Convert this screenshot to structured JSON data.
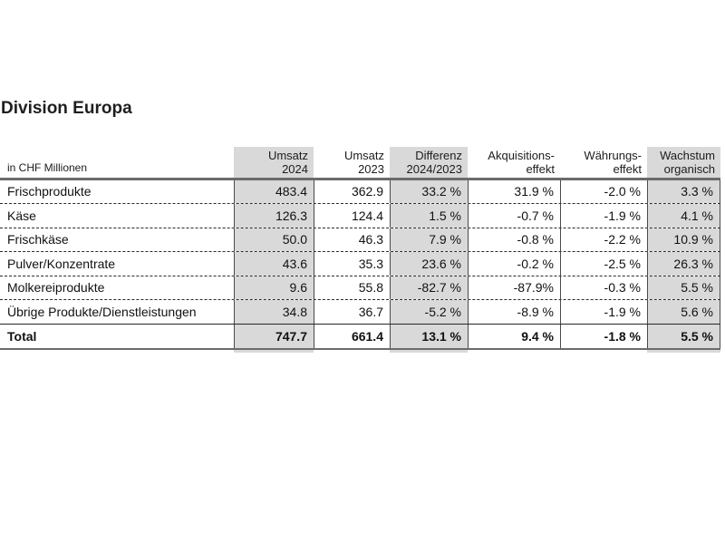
{
  "page": {
    "title": "Division Europa",
    "unit_label": "in CHF Millionen"
  },
  "colors": {
    "shaded_column": "#d9d9d9",
    "heavy_border": "#6b6b6b",
    "row_separator": "#2b2b2b",
    "column_line": "#4a4a4a"
  },
  "table": {
    "columns": [
      {
        "line1": "Umsatz",
        "line2": "2024",
        "shaded": true
      },
      {
        "line1": "Umsatz",
        "line2": "2023",
        "shaded": false
      },
      {
        "line1": "Differenz",
        "line2": "2024/2023",
        "shaded": true
      },
      {
        "line1": "Akquisitions-",
        "line2": "effekt",
        "shaded": false
      },
      {
        "line1": "Währungs-",
        "line2": "effekt",
        "shaded": false
      },
      {
        "line1": "Wachstum",
        "line2": "organisch",
        "shaded": true
      }
    ],
    "rows": [
      {
        "label": "Frischprodukte",
        "values": [
          "483.4",
          "362.9",
          "33.2 %",
          "31.9 %",
          "-2.0 %",
          "3.3 %"
        ]
      },
      {
        "label": "Käse",
        "values": [
          "126.3",
          "124.4",
          "1.5 %",
          "-0.7 %",
          "-1.9 %",
          "4.1 %"
        ]
      },
      {
        "label": "Frischkäse",
        "values": [
          "50.0",
          "46.3",
          "7.9 %",
          "-0.8 %",
          "-2.2 %",
          "10.9 %"
        ]
      },
      {
        "label": "Pulver/Konzentrate",
        "values": [
          "43.6",
          "35.3",
          "23.6 %",
          "-0.2 %",
          "-2.5 %",
          "26.3 %"
        ]
      },
      {
        "label": "Molkereiprodukte",
        "values": [
          "9.6",
          "55.8",
          "-82.7 %",
          "-87.9%",
          "-0.3 %",
          "5.5 %"
        ]
      },
      {
        "label": "Übrige Produkte/Dienstleistungen",
        "values": [
          "34.8",
          "36.7",
          "-5.2 %",
          "-8.9 %",
          "-1.9 %",
          "5.6 %"
        ]
      },
      {
        "label": "Total",
        "values": [
          "747.7",
          "661.4",
          "13.1 %",
          "9.4 %",
          "-1.8 %",
          "5.5 %"
        ],
        "bold": true
      }
    ]
  }
}
